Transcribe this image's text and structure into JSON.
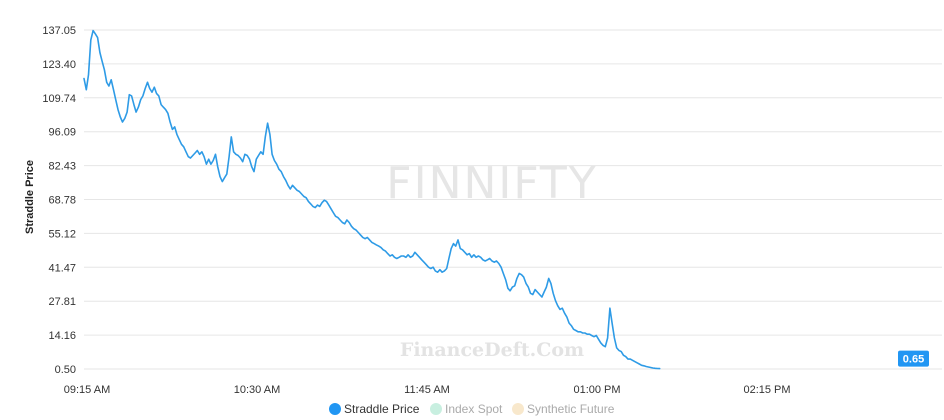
{
  "watermark": {
    "symbol": "FINNIFTY",
    "site": "FinanceDeft.Com"
  },
  "colors": {
    "series": "#2e9be6",
    "legend_straddle": "#2196f3",
    "legend_index": "#c8efe0",
    "legend_future": "#f8e8cc",
    "grid": "#e6e6e6",
    "badge": "#2196f3"
  },
  "chart_data": {
    "type": "line",
    "ylabel": "Straddle Price",
    "ylim": [
      0.5,
      137.05
    ],
    "y_ticks": [
      "137.05",
      "123.40",
      "109.74",
      "96.09",
      "82.43",
      "68.78",
      "55.12",
      "41.47",
      "27.81",
      "14.16",
      "0.50"
    ],
    "x_ticks": [
      {
        "label": "09:15 AM",
        "minute": 0
      },
      {
        "label": "10:30 AM",
        "minute": 75
      },
      {
        "label": "11:45 AM",
        "minute": 150
      },
      {
        "label": "01:00 PM",
        "minute": 225
      },
      {
        "label": "02:15 PM",
        "minute": 300
      }
    ],
    "last_value": "0.65",
    "legend": [
      {
        "name": "Straddle Price",
        "active": true
      },
      {
        "name": "Index Spot",
        "active": false
      },
      {
        "name": "Synthetic Future",
        "active": false
      }
    ],
    "series": [
      {
        "name": "Straddle Price",
        "points": [
          [
            0,
            117.5
          ],
          [
            1,
            113.0
          ],
          [
            2,
            119.0
          ],
          [
            3,
            133.0
          ],
          [
            4,
            136.8
          ],
          [
            5,
            135.5
          ],
          [
            6,
            134.0
          ],
          [
            7,
            128.0
          ],
          [
            8,
            124.5
          ],
          [
            9,
            121.0
          ],
          [
            10,
            116.0
          ],
          [
            11,
            114.5
          ],
          [
            12,
            117.0
          ],
          [
            13,
            113.0
          ],
          [
            14,
            109.0
          ],
          [
            15,
            105.0
          ],
          [
            16,
            102.0
          ],
          [
            17,
            100.0
          ],
          [
            18,
            101.5
          ],
          [
            19,
            104.0
          ],
          [
            20,
            111.0
          ],
          [
            21,
            110.5
          ],
          [
            22,
            107.0
          ],
          [
            23,
            104.0
          ],
          [
            24,
            106.0
          ],
          [
            25,
            109.0
          ],
          [
            26,
            110.5
          ],
          [
            27,
            113.5
          ],
          [
            28,
            116.0
          ],
          [
            29,
            113.5
          ],
          [
            30,
            112.0
          ],
          [
            31,
            114.0
          ],
          [
            32,
            111.5
          ],
          [
            33,
            110.5
          ],
          [
            34,
            107.0
          ],
          [
            35,
            106.0
          ],
          [
            36,
            105.0
          ],
          [
            37,
            103.5
          ],
          [
            38,
            100.0
          ],
          [
            39,
            97.0
          ],
          [
            40,
            98.0
          ],
          [
            41,
            95.0
          ],
          [
            42,
            93.0
          ],
          [
            43,
            91.0
          ],
          [
            44,
            90.0
          ],
          [
            45,
            88.0
          ],
          [
            46,
            86.0
          ],
          [
            47,
            85.5
          ],
          [
            48,
            86.5
          ],
          [
            49,
            87.5
          ],
          [
            50,
            88.5
          ],
          [
            51,
            87.0
          ],
          [
            52,
            88.0
          ],
          [
            53,
            86.0
          ],
          [
            54,
            83.0
          ],
          [
            55,
            85.0
          ],
          [
            56,
            83.0
          ],
          [
            57,
            84.5
          ],
          [
            58,
            87.0
          ],
          [
            59,
            82.0
          ],
          [
            60,
            78.0
          ],
          [
            61,
            76.0
          ],
          [
            62,
            77.5
          ],
          [
            63,
            79.0
          ],
          [
            64,
            86.0
          ],
          [
            65,
            94.0
          ],
          [
            66,
            88.0
          ],
          [
            67,
            87.0
          ],
          [
            68,
            86.5
          ],
          [
            69,
            85.5
          ],
          [
            70,
            84.0
          ],
          [
            71,
            87.0
          ],
          [
            72,
            86.5
          ],
          [
            73,
            85.0
          ],
          [
            74,
            82.0
          ],
          [
            75,
            80.0
          ],
          [
            76,
            85.0
          ],
          [
            77,
            86.5
          ],
          [
            78,
            88.0
          ],
          [
            79,
            87.0
          ],
          [
            80,
            94.0
          ],
          [
            81,
            99.5
          ],
          [
            82,
            95.0
          ],
          [
            83,
            87.0
          ],
          [
            84,
            84.5
          ],
          [
            85,
            83.0
          ],
          [
            86,
            81.0
          ],
          [
            87,
            80.0
          ],
          [
            88,
            78.0
          ],
          [
            89,
            76.5
          ],
          [
            90,
            74.5
          ],
          [
            91,
            73.0
          ],
          [
            92,
            74.5
          ],
          [
            93,
            73.5
          ],
          [
            94,
            72.5
          ],
          [
            95,
            72.0
          ],
          [
            96,
            71.0
          ],
          [
            97,
            70.0
          ],
          [
            98,
            69.5
          ],
          [
            99,
            68.0
          ],
          [
            100,
            67.0
          ],
          [
            101,
            66.0
          ],
          [
            102,
            65.5
          ],
          [
            103,
            66.5
          ],
          [
            104,
            66.0
          ],
          [
            105,
            67.5
          ],
          [
            106,
            68.5
          ],
          [
            107,
            68.0
          ],
          [
            108,
            66.5
          ],
          [
            109,
            65.0
          ],
          [
            110,
            63.5
          ],
          [
            111,
            62.0
          ],
          [
            112,
            61.5
          ],
          [
            113,
            60.5
          ],
          [
            114,
            59.5
          ],
          [
            115,
            59.0
          ],
          [
            116,
            60.5
          ],
          [
            117,
            59.5
          ],
          [
            118,
            58.0
          ],
          [
            119,
            57.0
          ],
          [
            120,
            56.5
          ],
          [
            121,
            55.5
          ],
          [
            122,
            54.5
          ],
          [
            123,
            53.5
          ],
          [
            124,
            53.0
          ],
          [
            125,
            53.5
          ],
          [
            126,
            52.5
          ],
          [
            127,
            51.5
          ],
          [
            128,
            51.0
          ],
          [
            129,
            50.5
          ],
          [
            130,
            50.0
          ],
          [
            131,
            49.5
          ],
          [
            132,
            48.5
          ],
          [
            133,
            48.0
          ],
          [
            134,
            47.0
          ],
          [
            135,
            46.0
          ],
          [
            136,
            46.5
          ],
          [
            137,
            45.5
          ],
          [
            138,
            45.0
          ],
          [
            139,
            45.5
          ],
          [
            140,
            46.0
          ],
          [
            141,
            46.0
          ],
          [
            142,
            45.5
          ],
          [
            143,
            46.5
          ],
          [
            144,
            45.5
          ],
          [
            145,
            46.0
          ],
          [
            146,
            47.5
          ],
          [
            147,
            46.5
          ],
          [
            148,
            45.5
          ],
          [
            149,
            44.5
          ],
          [
            150,
            43.5
          ],
          [
            151,
            42.5
          ],
          [
            152,
            41.5
          ],
          [
            153,
            41.0
          ],
          [
            154,
            41.5
          ],
          [
            155,
            40.0
          ],
          [
            156,
            39.5
          ],
          [
            157,
            40.5
          ],
          [
            158,
            39.5
          ],
          [
            159,
            40.0
          ],
          [
            160,
            41.0
          ],
          [
            161,
            45.0
          ],
          [
            162,
            49.0
          ],
          [
            163,
            51.0
          ],
          [
            164,
            50.0
          ],
          [
            165,
            52.5
          ],
          [
            166,
            49.0
          ],
          [
            167,
            48.5
          ],
          [
            168,
            47.5
          ],
          [
            169,
            46.5
          ],
          [
            170,
            47.0
          ],
          [
            171,
            45.5
          ],
          [
            172,
            46.5
          ],
          [
            173,
            45.5
          ],
          [
            174,
            46.0
          ],
          [
            175,
            45.5
          ],
          [
            176,
            44.5
          ],
          [
            177,
            44.0
          ],
          [
            178,
            44.5
          ],
          [
            179,
            45.0
          ],
          [
            180,
            44.0
          ],
          [
            181,
            43.5
          ],
          [
            182,
            44.0
          ],
          [
            183,
            43.0
          ],
          [
            184,
            41.5
          ],
          [
            185,
            39.0
          ],
          [
            186,
            36.5
          ],
          [
            187,
            33.0
          ],
          [
            188,
            32.0
          ],
          [
            189,
            33.5
          ],
          [
            190,
            34.0
          ],
          [
            191,
            37.0
          ],
          [
            192,
            39.0
          ],
          [
            193,
            38.5
          ],
          [
            194,
            37.5
          ],
          [
            195,
            35.0
          ],
          [
            196,
            33.5
          ],
          [
            197,
            31.0
          ],
          [
            198,
            30.5
          ],
          [
            199,
            32.5
          ],
          [
            200,
            31.5
          ],
          [
            201,
            30.5
          ],
          [
            202,
            29.5
          ],
          [
            203,
            31.5
          ],
          [
            204,
            33.5
          ],
          [
            205,
            37.0
          ],
          [
            206,
            35.0
          ],
          [
            207,
            31.0
          ],
          [
            208,
            28.0
          ],
          [
            209,
            26.0
          ],
          [
            210,
            24.5
          ],
          [
            211,
            25.0
          ],
          [
            212,
            23.0
          ],
          [
            213,
            21.5
          ],
          [
            214,
            19.0
          ],
          [
            215,
            18.0
          ],
          [
            216,
            16.5
          ],
          [
            217,
            16.0
          ],
          [
            218,
            15.5
          ],
          [
            219,
            15.5
          ],
          [
            220,
            15.0
          ],
          [
            221,
            15.0
          ],
          [
            222,
            14.5
          ],
          [
            223,
            14.5
          ],
          [
            224,
            14.0
          ],
          [
            225,
            13.5
          ],
          [
            226,
            14.0
          ],
          [
            227,
            12.5
          ],
          [
            228,
            11.0
          ],
          [
            229,
            10.0
          ],
          [
            230,
            9.5
          ],
          [
            231,
            13.0
          ],
          [
            232,
            25.0
          ],
          [
            233,
            19.0
          ],
          [
            234,
            13.0
          ],
          [
            235,
            9.0
          ],
          [
            236,
            8.0
          ],
          [
            237,
            7.5
          ],
          [
            238,
            6.0
          ],
          [
            239,
            5.5
          ],
          [
            240,
            4.5
          ],
          [
            241,
            4.5
          ],
          [
            242,
            4.0
          ],
          [
            243,
            3.5
          ],
          [
            244,
            3.0
          ],
          [
            245,
            2.5
          ],
          [
            246,
            2.0
          ],
          [
            247,
            1.8
          ],
          [
            248,
            1.5
          ],
          [
            249,
            1.3
          ],
          [
            250,
            1.1
          ],
          [
            251,
            0.9
          ],
          [
            252,
            0.8
          ],
          [
            253,
            0.7
          ],
          [
            254,
            0.65
          ]
        ]
      }
    ]
  }
}
